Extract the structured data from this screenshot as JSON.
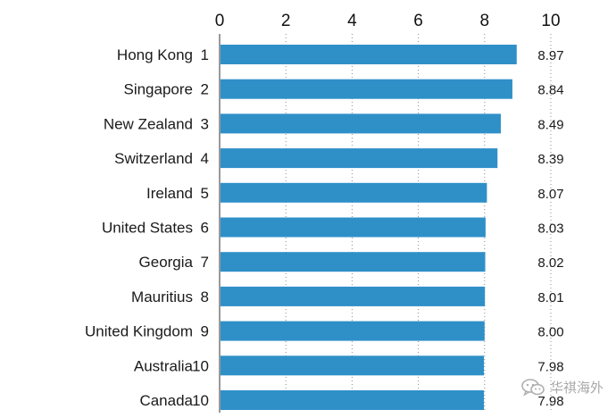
{
  "chart_data": {
    "type": "bar",
    "orientation": "horizontal",
    "categories": [
      "Hong Kong",
      "Singapore",
      "New Zealand",
      "Switzerland",
      "Ireland",
      "United States",
      "Georgia",
      "Mauritius",
      "United Kingdom",
      "Australia",
      "Canada"
    ],
    "ranks": [
      "1",
      "2",
      "3",
      "4",
      "5",
      "6",
      "7",
      "8",
      "9",
      "10",
      "10"
    ],
    "values": [
      8.97,
      8.84,
      8.49,
      8.39,
      8.07,
      8.03,
      8.02,
      8.01,
      8.0,
      7.98,
      7.98
    ],
    "value_labels": [
      "8.97",
      "8.84",
      "8.49",
      "8.39",
      "8.07",
      "8.03",
      "8.02",
      "8.01",
      "8.00",
      "7.98",
      "7.98"
    ],
    "x_ticks": [
      "0",
      "2",
      "4",
      "6",
      "8",
      "10"
    ],
    "xlim": [
      0,
      10
    ],
    "title": "",
    "xlabel": "",
    "ylabel": "",
    "grid": "vertical dotted",
    "x_axis_position": "top",
    "legend": "none"
  },
  "colors": {
    "bar": "#2f90c8",
    "text": "#1a1a1a"
  },
  "watermark": {
    "icon": "wechat-logo-icon",
    "text": "华祺海外"
  }
}
